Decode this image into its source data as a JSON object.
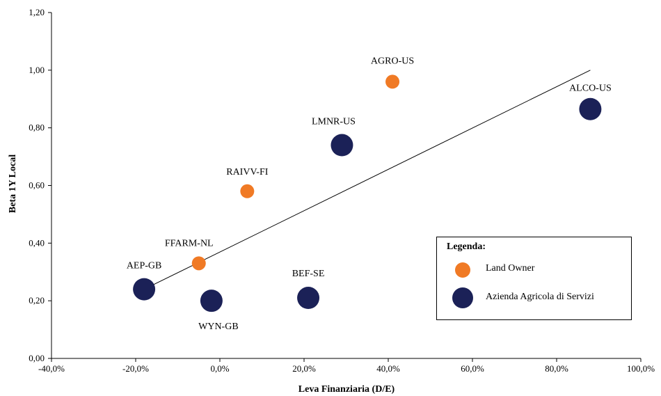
{
  "chart_data": {
    "type": "scatter",
    "xlabel": "Leva Finanziaria (D/E)",
    "ylabel": "Beta 1Y Local",
    "xlim": [
      -0.4,
      1.0
    ],
    "ylim": [
      0.0,
      1.2
    ],
    "x_ticks": [
      -0.4,
      -0.2,
      0.0,
      0.2,
      0.4,
      0.6,
      0.8,
      1.0
    ],
    "x_tick_labels": [
      "-40,0%",
      "-20,0%",
      "0,0%",
      "20,0%",
      "40,0%",
      "60,0%",
      "80,0%",
      "100,0%"
    ],
    "y_ticks": [
      0.0,
      0.2,
      0.4,
      0.6,
      0.8,
      1.0,
      1.2
    ],
    "y_tick_labels": [
      "0,00",
      "0,20",
      "0,40",
      "0,60",
      "0,80",
      "1,00",
      "1,20"
    ],
    "grid": false,
    "legend_position": "bottom-right",
    "legend_title": "Legenda:",
    "series": [
      {
        "name": "Land Owner",
        "color": "#F07A25",
        "points": [
          {
            "label": "AGRO-US",
            "x": 0.41,
            "y": 0.96
          },
          {
            "label": "RAIVV-FI",
            "x": 0.065,
            "y": 0.58
          },
          {
            "label": "FFARM-NL",
            "x": -0.05,
            "y": 0.33
          }
        ]
      },
      {
        "name": "Azienda Agricola di Servizi",
        "color": "#1B2157",
        "points": [
          {
            "label": "ALCO-US",
            "x": 0.88,
            "y": 0.865
          },
          {
            "label": "LMNR-US",
            "x": 0.29,
            "y": 0.74
          },
          {
            "label": "AEP-GB",
            "x": -0.18,
            "y": 0.24
          },
          {
            "label": "WYN-GB",
            "x": -0.02,
            "y": 0.2
          },
          {
            "label": "BEF-SE",
            "x": 0.21,
            "y": 0.21
          }
        ]
      }
    ],
    "trendline": {
      "x": [
        -0.18,
        0.88
      ],
      "y": [
        0.24,
        1.0
      ]
    }
  }
}
